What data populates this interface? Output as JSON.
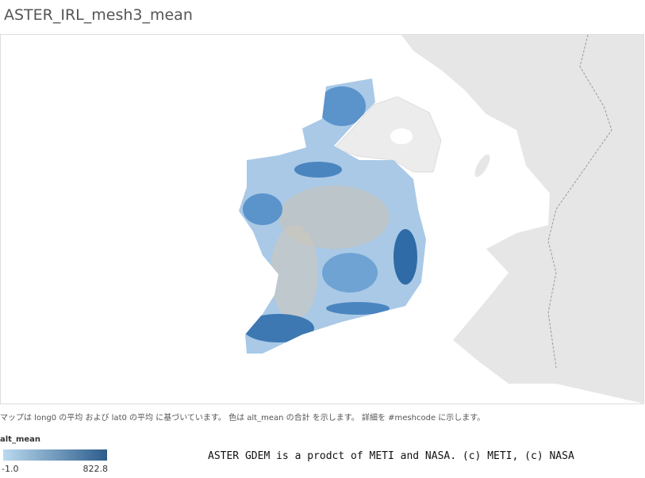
{
  "header": {
    "title": "ASTER_IRL_mesh3_mean"
  },
  "map": {
    "caption": "マップは long0 の平均 および lat0 の平均 に基づいています。 色は alt_mean の合計 を示します。 詳細を #meshcode に示します。"
  },
  "legend": {
    "title": "alt_mean",
    "min_label": "-1.0",
    "max_label": "822.8"
  },
  "attribution": "ASTER GDEM is a prodct of METI and NASA. (c) METI, (c) NASA"
}
